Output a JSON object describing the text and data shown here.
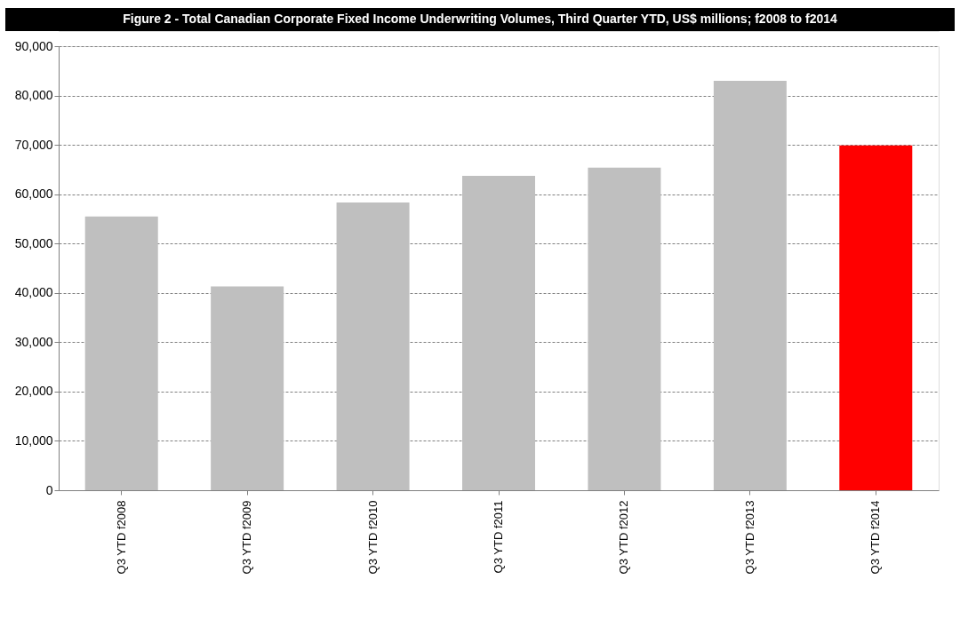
{
  "chart_data": {
    "type": "bar",
    "title": "Figure 2 - Total Canadian Corporate Fixed Income Underwriting Volumes, Third Quarter YTD, US$ millions; f2008 to f2014",
    "categories": [
      "Q3 YTD f2008",
      "Q3 YTD f2009",
      "Q3 YTD f2010",
      "Q3 YTD f2011",
      "Q3 YTD f2012",
      "Q3 YTD f2013",
      "Q3 YTD f2014"
    ],
    "values": [
      55500,
      41300,
      58300,
      63700,
      65400,
      83000,
      69900
    ],
    "colors": [
      "#bfbfbf",
      "#bfbfbf",
      "#bfbfbf",
      "#bfbfbf",
      "#bfbfbf",
      "#bfbfbf",
      "#ff0000"
    ],
    "ylim": [
      0,
      90000
    ],
    "yticks": [
      {
        "value": 0,
        "label": "0"
      },
      {
        "value": 10000,
        "label": "10,000"
      },
      {
        "value": 20000,
        "label": "20,000"
      },
      {
        "value": 30000,
        "label": "30,000"
      },
      {
        "value": 40000,
        "label": "40,000"
      },
      {
        "value": 50000,
        "label": "50,000"
      },
      {
        "value": 60000,
        "label": "60,000"
      },
      {
        "value": 70000,
        "label": "70,000"
      },
      {
        "value": 80000,
        "label": "80,000"
      },
      {
        "value": 90000,
        "label": "90,000"
      }
    ],
    "grid": "y"
  }
}
